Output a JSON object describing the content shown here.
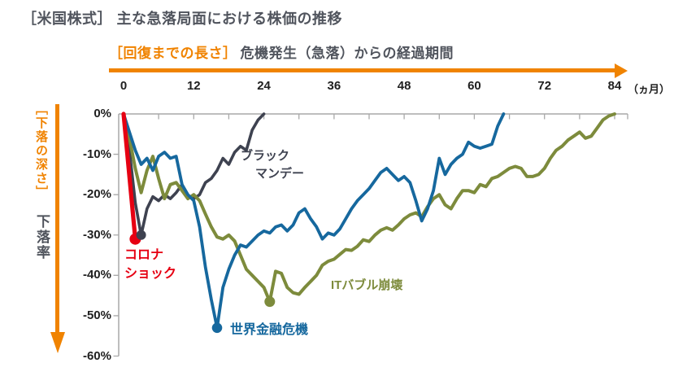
{
  "header": {
    "title": "［米国株式］ 主な急落局面における株価の推移",
    "x_axis_caption_highlight": "［回復までの長さ］",
    "x_axis_caption": "危機発生（急落）からの経過期間",
    "x_unit": "（ヵ月）",
    "y_axis_caption_highlight": "［下落の深さ］",
    "y_axis_caption": "下落率"
  },
  "colors": {
    "accent_orange": "#f08300",
    "title_gray": "#50545d",
    "axis_gray": "#a9a9a9",
    "black_monday": "#3e4250",
    "it_bubble": "#7d8b3c",
    "gfc_blue": "#16689e",
    "corona_red": "#e60012"
  },
  "chart_data": {
    "type": "line",
    "title": "［米国株式］ 主な急落局面における株価の推移",
    "xlabel": "危機発生（急落）からの経過期間（ヵ月）",
    "ylabel": "下落率（%）",
    "x_unit": "ヵ月",
    "xlim": [
      0,
      84
    ],
    "ylim": [
      -60,
      0
    ],
    "x_ticks": [
      0,
      12,
      24,
      36,
      48,
      60,
      72,
      84
    ],
    "x_minor_tick_step": 6,
    "y_ticks": [
      "0%",
      "-10%",
      "-20%",
      "-30%",
      "-40%",
      "-50%",
      "-60%"
    ],
    "grid": false,
    "legend": "inline-labels",
    "axis_color": "#a9a9a9",
    "x_start_month": 0,
    "x_step_months": 1,
    "series": [
      {
        "id": "black-monday",
        "name": "ブラックマンデー",
        "label_lines": [
          "ブラック",
          "マンデー"
        ],
        "color": "#3e4250",
        "width": 3.6,
        "marker_r": 6,
        "trough": {
          "month": 3,
          "value": -30
        },
        "recovery_month": 24,
        "values": [
          0,
          -9,
          -22,
          -30,
          -23.5,
          -20.5,
          -21.5,
          -20,
          -21,
          -19.5,
          -17.5,
          -20.5,
          -21,
          -20,
          -17,
          -16,
          -14,
          -11,
          -12.5,
          -9.5,
          -8,
          -9,
          -4,
          -1.5,
          0
        ]
      },
      {
        "id": "it-bubble",
        "name": "ITバブル崩壊",
        "label_lines": [
          "ITバブル崩壊"
        ],
        "color": "#7d8b3c",
        "width": 4,
        "marker_r": 6.5,
        "trough": {
          "month": 25,
          "value": -46.5
        },
        "recovery_month": 84,
        "values": [
          0,
          -6,
          -13.5,
          -19.5,
          -14,
          -10.5,
          -16,
          -21,
          -17.5,
          -17,
          -19,
          -21,
          -20,
          -21.5,
          -24.8,
          -28,
          -30.5,
          -31,
          -30,
          -31.5,
          -35,
          -38.5,
          -40,
          -41.5,
          -43,
          -46.5,
          -39,
          -39.5,
          -43,
          -44.3,
          -44.7,
          -43,
          -41.5,
          -40,
          -37.5,
          -36.5,
          -36,
          -34.8,
          -33.6,
          -33.8,
          -32.8,
          -31.2,
          -31.6,
          -30,
          -28.8,
          -28.2,
          -28.8,
          -27.5,
          -26,
          -25,
          -24.5,
          -25.5,
          -23,
          -21,
          -20,
          -22.5,
          -23.5,
          -21,
          -19,
          -19,
          -19.5,
          -17.5,
          -18,
          -16,
          -15.5,
          -14.5,
          -13.5,
          -13,
          -13.5,
          -15.5,
          -15.5,
          -15,
          -13.5,
          -11,
          -9,
          -8,
          -6.5,
          -5.5,
          -4.5,
          -6,
          -5.5,
          -3.5,
          -1.5,
          -0.5,
          0
        ]
      },
      {
        "id": "gfc",
        "name": "世界金融危機",
        "label_lines": [
          "世界金融危機"
        ],
        "color": "#16689e",
        "width": 3.8,
        "marker_r": 6.3,
        "trough": {
          "month": 16,
          "value": -53
        },
        "recovery_month": 65,
        "values": [
          0,
          -4.5,
          -9,
          -12.5,
          -11,
          -14,
          -10.5,
          -9.5,
          -11,
          -10.5,
          -17.5,
          -20,
          -21.5,
          -28,
          -38,
          -46,
          -53,
          -43,
          -38.5,
          -35,
          -32.5,
          -33,
          -31.5,
          -30,
          -29,
          -29.5,
          -28,
          -27.5,
          -29,
          -27.5,
          -24.5,
          -23.5,
          -26,
          -28,
          -31,
          -29.5,
          -30,
          -28.5,
          -26,
          -23.5,
          -21.5,
          -20,
          -18.5,
          -16.5,
          -14.5,
          -13.5,
          -15,
          -16.5,
          -15.5,
          -17,
          -21.5,
          -26.5,
          -23.5,
          -19,
          -11,
          -15,
          -12.5,
          -11,
          -10,
          -7,
          -8,
          -8.5,
          -8,
          -7.5,
          -3,
          0
        ]
      },
      {
        "id": "corona",
        "name": "コロナショック",
        "label_lines": [
          "コロナ",
          "ショック"
        ],
        "color": "#e60012",
        "width": 5.2,
        "marker_r": 7,
        "trough": {
          "month": 2,
          "value": -31
        },
        "values": [
          0,
          -15.5,
          -31
        ]
      }
    ]
  }
}
